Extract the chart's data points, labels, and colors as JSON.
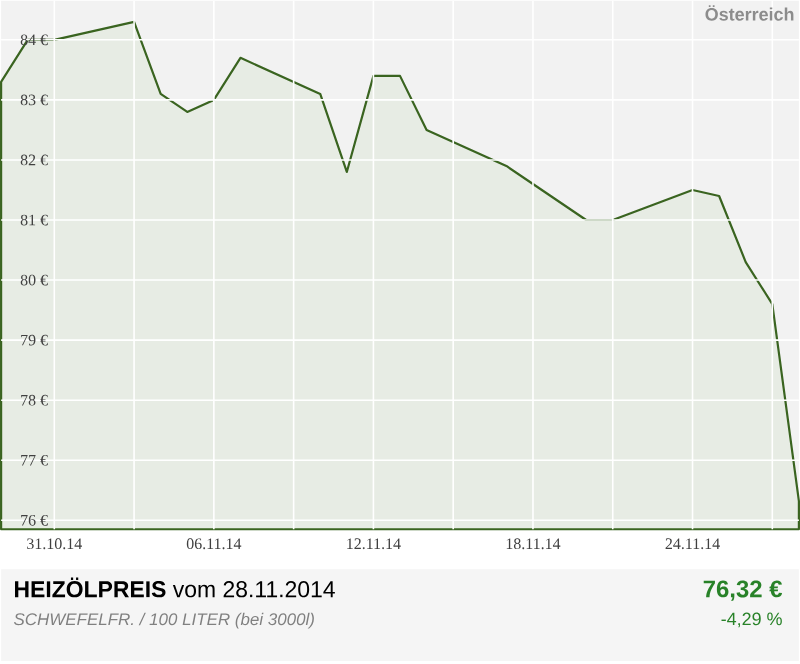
{
  "chart_data": {
    "type": "area",
    "title": "**HEIZÖLPREIS** vom 28.11.2014",
    "subtitle": "SCHWEFELFR. / 100 LITER (bei 3000l)",
    "x": [
      "2014-10-29",
      "2014-10-30",
      "2014-10-31",
      "2014-11-03",
      "2014-11-04",
      "2014-11-05",
      "2014-11-06",
      "2014-11-07",
      "2014-11-10",
      "2014-11-11",
      "2014-11-12",
      "2014-11-13",
      "2014-11-14",
      "2014-11-17",
      "2014-11-18",
      "2014-11-19",
      "2014-11-20",
      "2014-11-21",
      "2014-11-24",
      "2014-11-25",
      "2014-11-26",
      "2014-11-27",
      "2014-11-28"
    ],
    "series": [
      {
        "color": "#3a6420",
        "values": [
          83.3,
          84.0,
          84.0,
          84.3,
          83.1,
          82.8,
          83.0,
          83.7,
          83.1,
          81.8,
          83.4,
          83.4,
          82.5,
          81.9,
          81.6,
          81.3,
          81.0,
          81.0,
          81.5,
          81.4,
          80.3,
          79.6,
          76.32
        ]
      }
    ],
    "xlim": [
      "2014-10-29",
      "2014-11-28"
    ],
    "ylim": [
      75.85,
      84.65
    ],
    "xticks": [
      {
        "value": "2014-10-31",
        "label": "31.10.14"
      },
      {
        "value": "2014-11-03",
        "label": null
      },
      {
        "value": "2014-11-06",
        "label": "06.11.14"
      },
      {
        "value": "2014-11-09",
        "label": null
      },
      {
        "value": "2014-11-12",
        "label": "12.11.14"
      },
      {
        "value": "2014-11-15",
        "label": null
      },
      {
        "value": "2014-11-18",
        "label": "18.11.14"
      },
      {
        "value": "2014-11-21",
        "label": null
      },
      {
        "value": "2014-11-24",
        "label": "24.11.14"
      },
      {
        "value": "2014-11-27",
        "label": null
      }
    ],
    "yticks": [
      {
        "value": 76,
        "label": "76 €"
      },
      {
        "value": 77,
        "label": "77 €"
      },
      {
        "value": 78,
        "label": "78 €"
      },
      {
        "value": 79,
        "label": "79 €"
      },
      {
        "value": 80,
        "label": "80 €"
      },
      {
        "value": 81,
        "label": "81 €"
      },
      {
        "value": 82,
        "label": "82 €"
      },
      {
        "value": 83,
        "label": "83 €"
      },
      {
        "value": 84,
        "label": "84 €"
      }
    ],
    "grid": true,
    "annotations": [
      "Österreich",
      "76,32 €",
      "-4,29 %"
    ]
  }
}
